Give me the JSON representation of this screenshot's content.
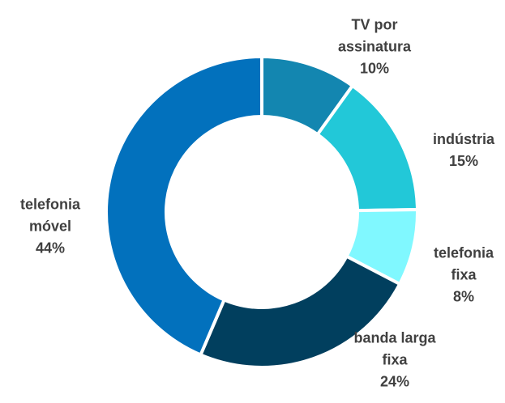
{
  "chart_data": {
    "type": "donut",
    "categories": [
      "TV por assinatura",
      "indústria",
      "telefonia fixa",
      "banda larga fixa",
      "telefonia móvel"
    ],
    "values": [
      10,
      15,
      8,
      24,
      44
    ],
    "value_labels": [
      "10%",
      "15%",
      "8%",
      "24%",
      "44%"
    ],
    "colors": [
      "#1386b0",
      "#22c8d8",
      "#80f8ff",
      "#013f5e",
      "#0271bd"
    ]
  }
}
